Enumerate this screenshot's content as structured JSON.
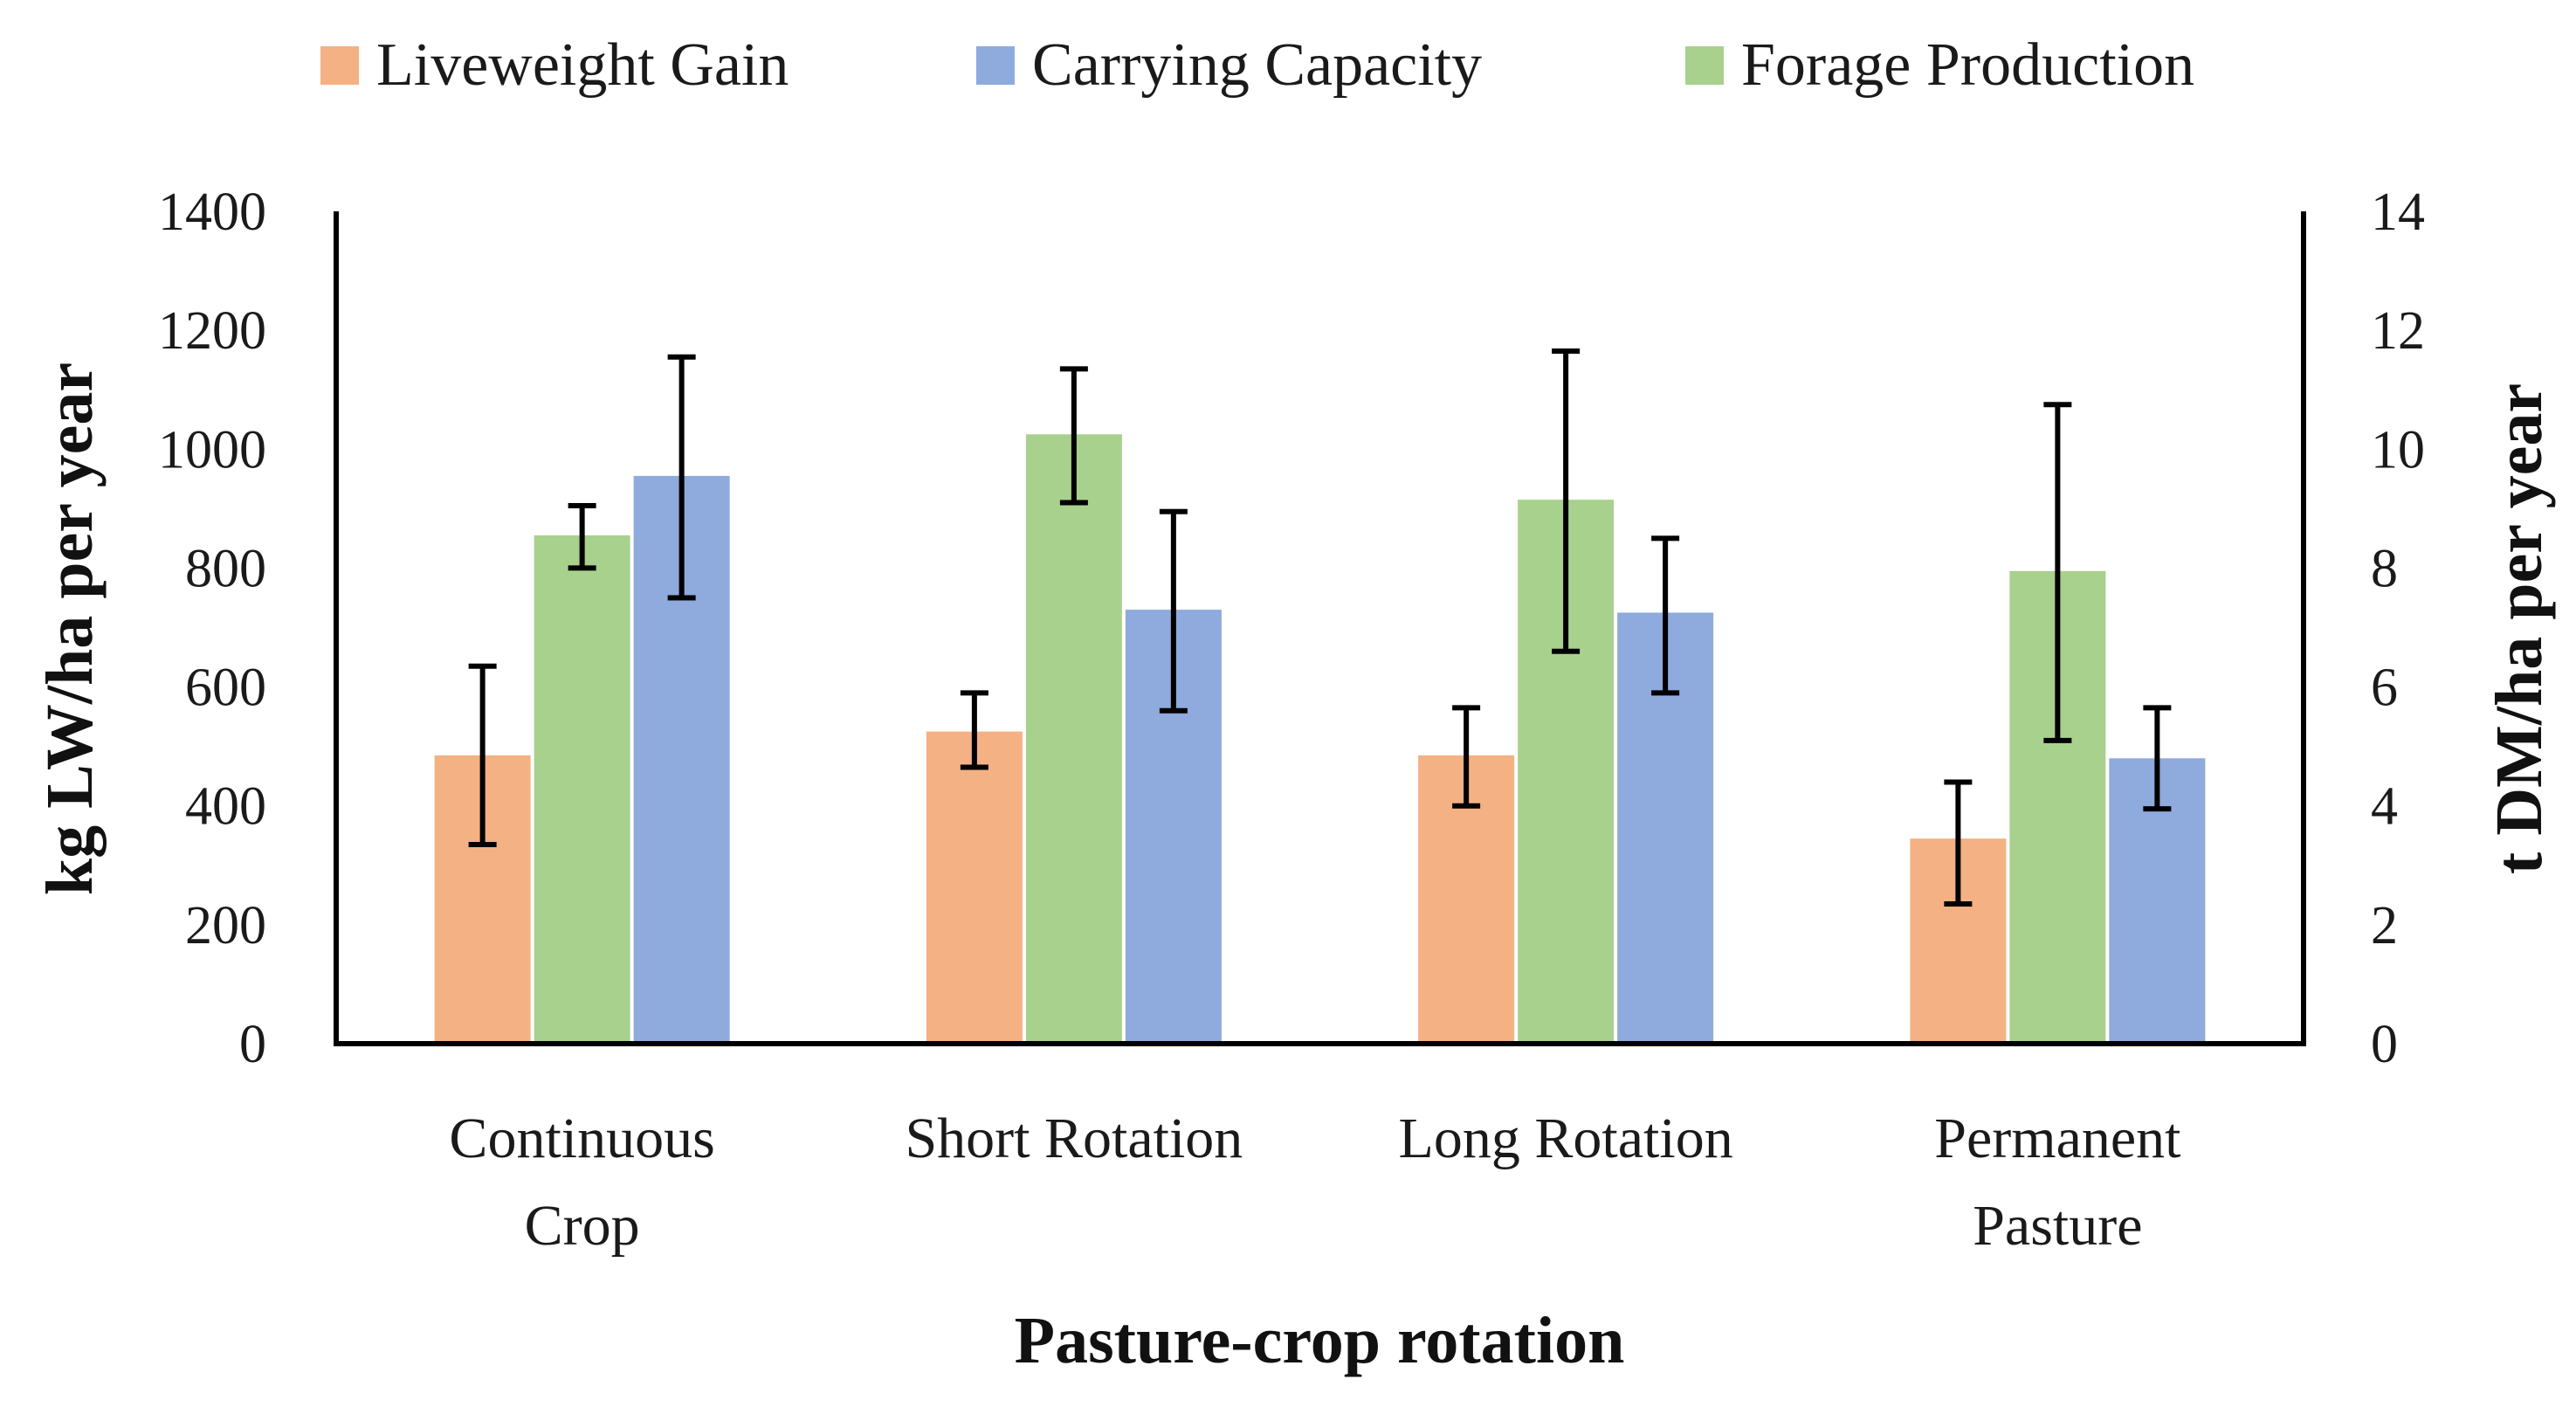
{
  "chart_data": {
    "type": "bar",
    "categories": [
      [
        "Continuous",
        "Crop"
      ],
      [
        "Short Rotation"
      ],
      [
        "Long Rotation"
      ],
      [
        "Permanent",
        "Pasture"
      ]
    ],
    "xlabel": "Pasture-crop rotation",
    "ylabel": "kg LW/ha per year",
    "y2label": "t DM/ha per year",
    "ylim": [
      0,
      1400
    ],
    "y2lim": [
      0,
      14
    ],
    "yticks": [
      "0",
      "200",
      "400",
      "600",
      "800",
      "1000",
      "1200",
      "1400"
    ],
    "y2ticks": [
      "0",
      "2",
      "4",
      "6",
      "8",
      "10",
      "12",
      "14"
    ],
    "legend_position": "top",
    "bar_order": [
      "Liveweight Gain",
      "Forage Production",
      "Carrying Capacity"
    ],
    "series": [
      {
        "name": "Liveweight Gain",
        "axis": "left",
        "color": "#F4B183",
        "values": [
          485,
          525,
          485,
          345
        ],
        "error_low": [
          335,
          465,
          400,
          235
        ],
        "error_high": [
          635,
          590,
          565,
          440
        ]
      },
      {
        "name": "Carrying Capacity",
        "axis": "left",
        "color": "#8FAADC",
        "values": [
          955,
          730,
          725,
          480
        ],
        "error_low": [
          750,
          560,
          590,
          395
        ],
        "error_high": [
          1155,
          895,
          850,
          565
        ]
      },
      {
        "name": "Forage Production",
        "axis": "right",
        "color": "#A9D18E",
        "values": [
          8.55,
          10.25,
          9.15,
          7.95
        ],
        "error_low": [
          8.0,
          9.1,
          6.6,
          5.1
        ],
        "error_high": [
          9.05,
          11.35,
          11.65,
          10.75
        ]
      }
    ]
  }
}
